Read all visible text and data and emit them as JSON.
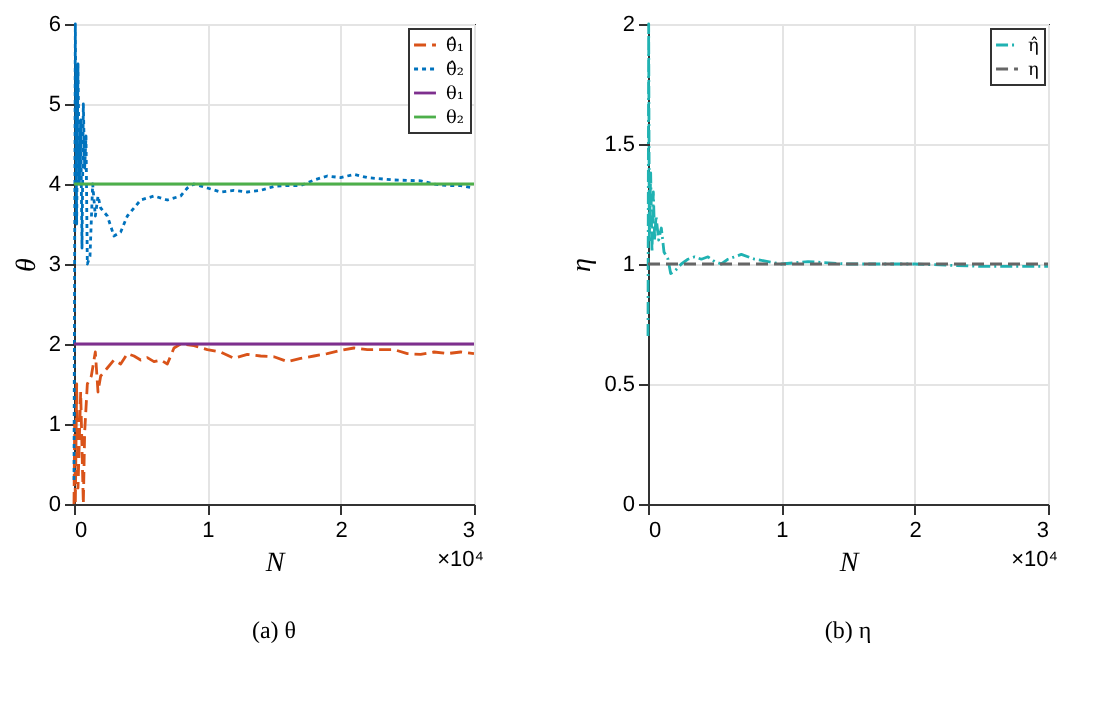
{
  "chart_data": [
    {
      "type": "line",
      "title": "(a) θ",
      "xlabel": "N",
      "ylabel": "θ",
      "xlim": [
        0,
        3
      ],
      "xticks": [
        0,
        1,
        2,
        3
      ],
      "ylim": [
        0,
        6
      ],
      "yticks": [
        0,
        1,
        2,
        3,
        4,
        5,
        6
      ],
      "grid": true,
      "legend": "top right",
      "annotations": [
        "×10⁴"
      ],
      "series": [
        {
          "name": "θ̂₁",
          "color": "#d95319",
          "line_style": "dashed",
          "x": [
            0,
            0.005,
            0.01,
            0.02,
            0.03,
            0.05,
            0.07,
            0.08,
            0.1,
            0.13,
            0.16,
            0.18,
            0.2,
            0.25,
            0.3,
            0.35,
            0.4,
            0.45,
            0.5,
            0.55,
            0.6,
            0.65,
            0.7,
            0.75,
            0.8,
            0.9,
            1.0,
            1.1,
            1.2,
            1.3,
            1.4,
            1.5,
            1.6,
            1.7,
            1.8,
            1.9,
            2.0,
            2.1,
            2.2,
            2.4,
            2.5,
            2.6,
            2.7,
            2.8,
            2.9,
            3.0
          ],
          "values": [
            0,
            1.0,
            0.0,
            1.5,
            0.2,
            1.4,
            0,
            0.9,
            1.5,
            1.6,
            1.9,
            1.4,
            1.6,
            1.7,
            1.8,
            1.75,
            1.88,
            1.85,
            1.8,
            1.83,
            1.78,
            1.8,
            1.75,
            1.95,
            2.0,
            1.98,
            1.93,
            1.9,
            1.82,
            1.87,
            1.85,
            1.84,
            1.78,
            1.82,
            1.85,
            1.88,
            1.92,
            1.95,
            1.93,
            1.93,
            1.88,
            1.87,
            1.9,
            1.88,
            1.9,
            1.88
          ]
        },
        {
          "name": "θ̂₂",
          "color": "#0072bd",
          "line_style": "dotted",
          "x": [
            0,
            0.01,
            0.02,
            0.03,
            0.04,
            0.05,
            0.06,
            0.07,
            0.08,
            0.09,
            0.1,
            0.12,
            0.14,
            0.16,
            0.18,
            0.2,
            0.25,
            0.3,
            0.35,
            0.4,
            0.5,
            0.6,
            0.7,
            0.8,
            0.85,
            0.9,
            1.0,
            1.1,
            1.2,
            1.3,
            1.4,
            1.5,
            1.6,
            1.7,
            1.8,
            1.9,
            2.0,
            2.1,
            2.2,
            2.4,
            2.6,
            2.7,
            2.8,
            2.9,
            3.0
          ],
          "values": [
            0.3,
            6.0,
            3.5,
            5.5,
            4.0,
            4.8,
            3.2,
            5.0,
            4.2,
            4.6,
            3.0,
            3.1,
            4.0,
            3.6,
            3.85,
            3.7,
            3.6,
            3.35,
            3.4,
            3.6,
            3.8,
            3.85,
            3.8,
            3.85,
            3.95,
            4.0,
            3.95,
            3.9,
            3.92,
            3.9,
            3.92,
            3.97,
            3.98,
            3.98,
            4.05,
            4.1,
            4.08,
            4.12,
            4.08,
            4.05,
            4.04,
            4.0,
            3.98,
            3.98,
            3.95
          ]
        },
        {
          "name": "θ₁",
          "color": "#7e2f8e",
          "line_style": "solid",
          "x": [
            0,
            3
          ],
          "values": [
            2,
            2
          ]
        },
        {
          "name": "θ₂",
          "color": "#4daf4a",
          "line_style": "solid",
          "x": [
            0,
            3
          ],
          "values": [
            4,
            4
          ]
        }
      ]
    },
    {
      "type": "line",
      "title": "(b) η",
      "xlabel": "N",
      "ylabel": "η",
      "xlim": [
        0,
        3
      ],
      "xticks": [
        0,
        1,
        2,
        3
      ],
      "ylim": [
        0,
        2
      ],
      "yticks": [
        {
          "value": 0,
          "label": "0"
        },
        0.5,
        {
          "value": 1,
          "label": "1"
        },
        1.5,
        {
          "value": 2,
          "label": "2"
        }
      ],
      "grid": true,
      "legend": "top right",
      "annotations": [
        "×10⁴"
      ],
      "series": [
        {
          "name": "η̂",
          "color": "#20b2b2",
          "line_style": "dashdot",
          "x": [
            0,
            0.005,
            0.01,
            0.02,
            0.03,
            0.04,
            0.05,
            0.06,
            0.08,
            0.1,
            0.12,
            0.15,
            0.17,
            0.2,
            0.25,
            0.3,
            0.35,
            0.4,
            0.45,
            0.5,
            0.55,
            0.6,
            0.7,
            0.8,
            0.9,
            1.0,
            1.2,
            1.5,
            2.0,
            2.5,
            3.0
          ],
          "values": [
            0.7,
            2.0,
            1.1,
            1.38,
            1.05,
            1.3,
            1.1,
            1.2,
            1.1,
            1.15,
            1.05,
            1.02,
            0.96,
            0.97,
            1.0,
            1.02,
            1.03,
            1.02,
            1.03,
            1.01,
            1.0,
            1.02,
            1.04,
            1.02,
            1.01,
            1.0,
            1.01,
            1.0,
            1.0,
            0.99,
            0.99
          ]
        },
        {
          "name": "η",
          "color": "#666666",
          "line_style": "dashed",
          "x": [
            0,
            3
          ],
          "values": [
            1,
            1
          ]
        }
      ]
    }
  ]
}
